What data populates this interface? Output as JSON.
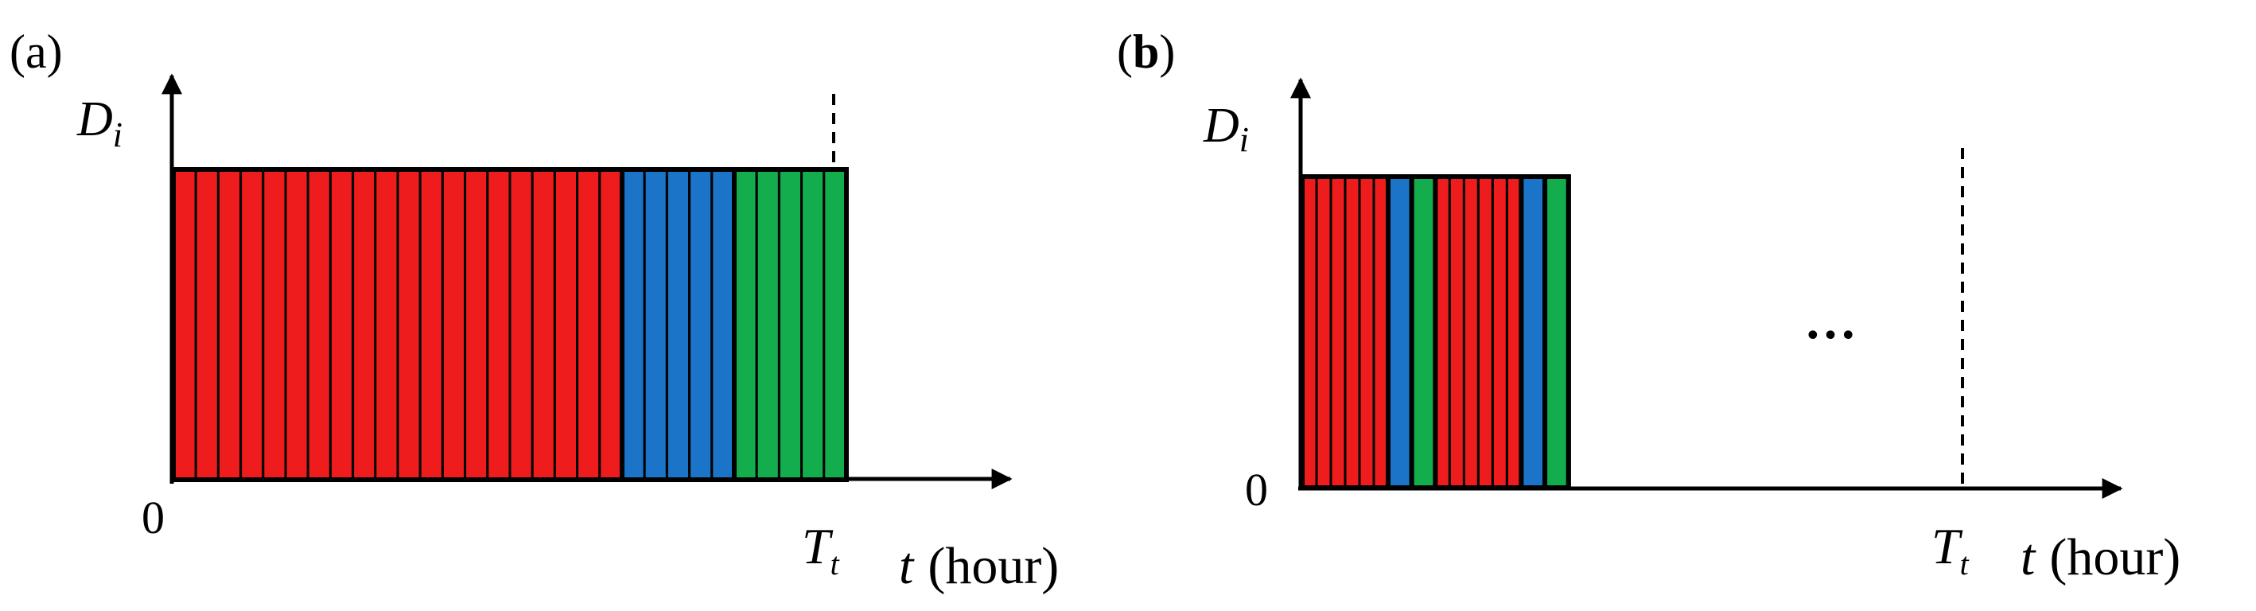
{
  "panels": [
    {
      "id": "a",
      "label": "(a)",
      "y_axis_label": "D",
      "y_axis_subscript": "i",
      "origin_label": "0",
      "t_end_label": "T",
      "t_end_subscript": "t",
      "x_axis_var": "t",
      "x_axis_unit": "(hour)",
      "segments": [
        {
          "color": "red",
          "stripes": 20
        },
        {
          "color": "blue",
          "stripes": 5
        },
        {
          "color": "green",
          "stripes": 5
        }
      ]
    },
    {
      "id": "b",
      "label_open": "(",
      "label_bold": "b",
      "label_close": ")",
      "y_axis_label": "D",
      "y_axis_subscript": "i",
      "origin_label": "0",
      "t_end_label": "T",
      "t_end_subscript": "t",
      "x_axis_var": "t",
      "x_axis_unit": "(hour)",
      "ellipsis": "…",
      "segments": [
        {
          "color": "red",
          "stripes": 6
        },
        {
          "color": "blue",
          "stripes": 1
        },
        {
          "color": "green",
          "stripes": 1
        },
        {
          "color": "red",
          "stripes": 6
        },
        {
          "color": "blue",
          "stripes": 1
        },
        {
          "color": "green",
          "stripes": 1
        }
      ]
    }
  ],
  "colors": {
    "red": "#ee1c1c",
    "blue": "#1c74c8",
    "green": "#13ad4e",
    "outline": "#000000"
  }
}
